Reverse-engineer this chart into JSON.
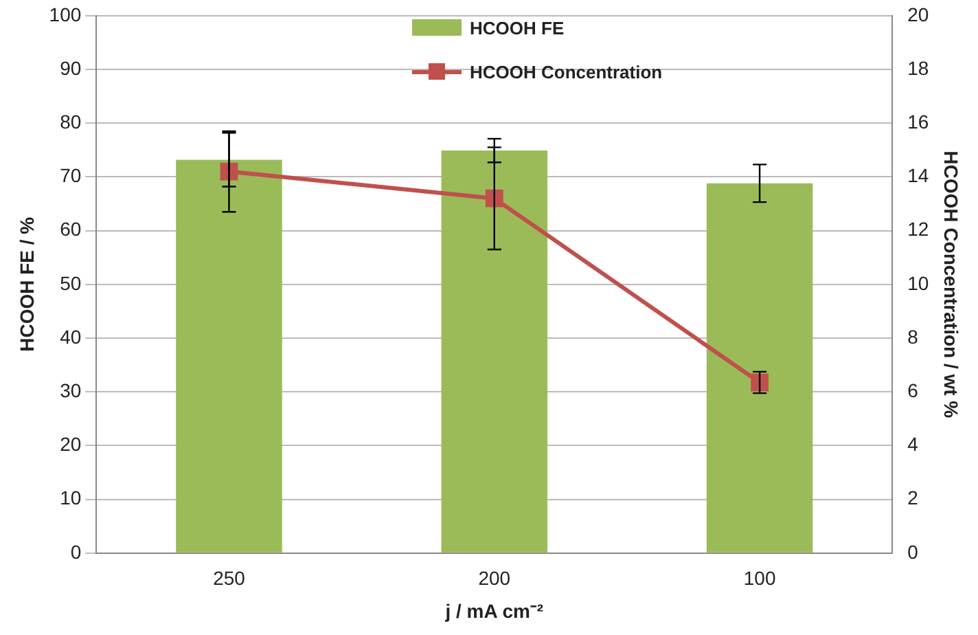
{
  "chart_data": {
    "type": "bar",
    "categories": [
      "250",
      "200",
      "100"
    ],
    "xlabel": "j / mA cm⁻²",
    "ylabel": "HCOOH FE / %",
    "y2label": "HCOOH Concentration / wt %",
    "series": [
      {
        "name": "HCOOH FE",
        "color": "#9bbb59",
        "values": [
          73.2,
          74.9,
          68.8
        ],
        "errors": [
          5,
          2.2,
          3.5
        ]
      },
      {
        "name": "HCOOH Concentration",
        "type": "line",
        "axis": "y2",
        "color": "#c0504d",
        "values": [
          14.2,
          13.2,
          6.35
        ],
        "errors": [
          1.5,
          1.9,
          0.4
        ],
        "marker": "square"
      }
    ],
    "ylim": [
      0,
      100
    ],
    "yticks": [
      0,
      10,
      20,
      30,
      40,
      50,
      60,
      70,
      80,
      90,
      100
    ],
    "y2lim": [
      0,
      20
    ],
    "y2ticks": [
      0,
      2,
      4,
      6,
      8,
      10,
      12,
      14,
      16,
      18,
      20
    ],
    "grid": "y",
    "legend": "top"
  }
}
